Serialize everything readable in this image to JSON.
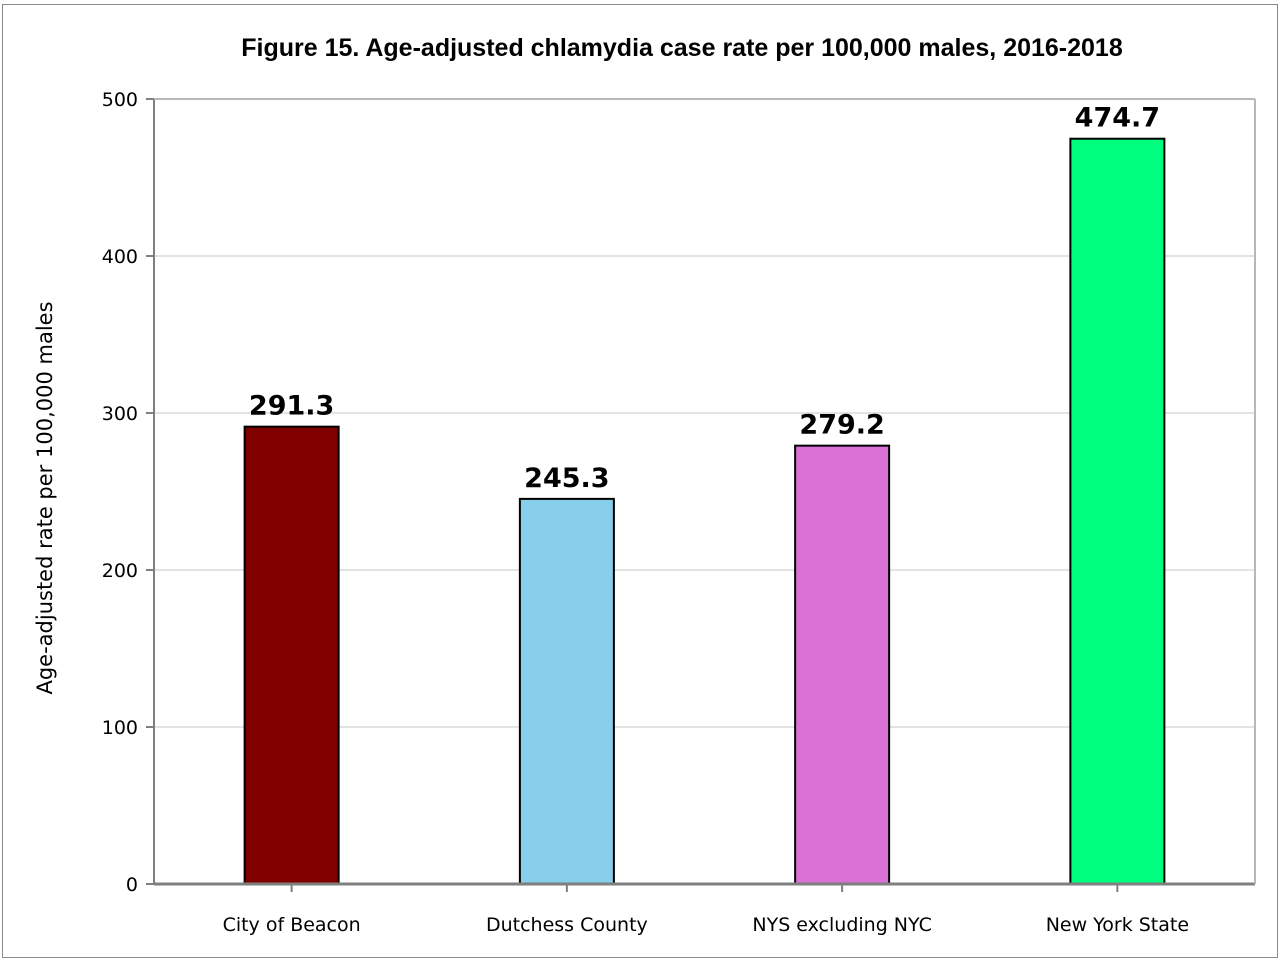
{
  "chart_data": {
    "type": "bar",
    "title": "Figure 15. Age-adjusted chlamydia case rate per 100,000 males, 2016-2018",
    "xlabel": "",
    "ylabel": "Age-adjusted rate per 100,000 males",
    "categories": [
      "City of Beacon",
      "Dutchess County",
      "NYS excluding NYC",
      "New York State"
    ],
    "values": [
      291.3,
      245.3,
      279.2,
      474.7
    ],
    "value_labels": [
      "291.3",
      "245.3",
      "279.2",
      "474.7"
    ],
    "colors": [
      "#800000",
      "#87ceeb",
      "#da70d6",
      "#00ff7f"
    ],
    "ylim": [
      0,
      500
    ],
    "yticks": [
      0,
      100,
      200,
      300,
      400,
      500
    ],
    "ytick_labels": [
      "0",
      "100",
      "200",
      "300",
      "400",
      "500"
    ],
    "grid": true,
    "legend": "none"
  }
}
